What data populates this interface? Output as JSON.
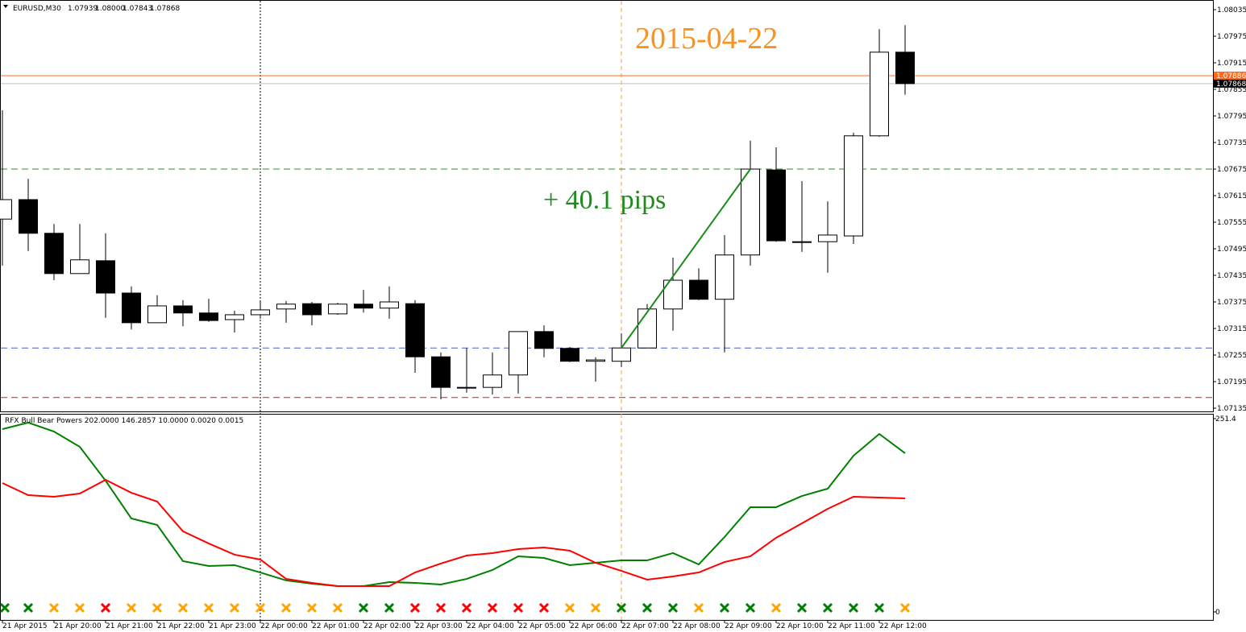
{
  "chart_data": [
    {
      "type": "candlestick",
      "symbol": "EURUSD,M30",
      "ohlc_labels": [
        "1.07939",
        "1.08000",
        "1.07843",
        "1.07868"
      ],
      "categories": [
        "21 Apr 2015",
        null,
        "21 Apr 20:00",
        null,
        "21 Apr 21:00",
        null,
        "21 Apr 22:00",
        null,
        "21 Apr 23:00",
        null,
        "22 Apr 00:00",
        null,
        "22 Apr 01:00",
        null,
        "22 Apr 02:00",
        null,
        "22 Apr 03:00",
        null,
        "22 Apr 04:00",
        null,
        "22 Apr 05:00",
        null,
        "22 Apr 06:00",
        null,
        "22 Apr 07:00",
        null,
        "22 Apr 08:00",
        null,
        "22 Apr 09:00",
        null,
        "22 Apr 10:00",
        null,
        "22 Apr 11:00",
        null,
        "22 Apr 12:00",
        null
      ],
      "open": [
        1.07562,
        1.07606,
        1.0753,
        1.07439,
        1.07468,
        1.07395,
        1.07328,
        1.07366,
        1.0735,
        1.07335,
        1.07346,
        1.07359,
        1.07371,
        1.07348,
        1.0737,
        1.07361,
        1.07371,
        1.07251,
        1.07182,
        1.07182,
        1.0721,
        1.07308,
        1.0727,
        1.07241,
        1.07241,
        1.07271,
        1.07359,
        1.07424,
        1.07381,
        1.07481,
        1.07673,
        1.0751,
        1.07511,
        1.07524,
        1.0775,
        1.07939
      ],
      "high": [
        1.07808,
        1.07653,
        1.07551,
        1.07551,
        1.0753,
        1.0741,
        1.0739,
        1.07379,
        1.07382,
        1.07355,
        1.07375,
        1.07377,
        1.07375,
        1.07373,
        1.07402,
        1.0741,
        1.07379,
        1.07261,
        1.07271,
        1.07261,
        1.07308,
        1.07322,
        1.07273,
        1.0725,
        1.07304,
        1.0737,
        1.07475,
        1.07451,
        1.07526,
        1.07739,
        1.07724,
        1.07648,
        1.07602,
        1.07757,
        1.07991,
        1.08
      ],
      "low": [
        1.07457,
        1.0749,
        1.07424,
        1.07439,
        1.07339,
        1.07313,
        1.07328,
        1.0732,
        1.0733,
        1.07306,
        1.07337,
        1.07328,
        1.07322,
        1.07346,
        1.07351,
        1.07337,
        1.07215,
        1.07155,
        1.0717,
        1.07166,
        1.07168,
        1.0725,
        1.07239,
        1.07195,
        1.07228,
        1.07271,
        1.0731,
        1.07379,
        1.07261,
        1.07457,
        1.07511,
        1.07488,
        1.07441,
        1.07506,
        1.07748,
        1.07843
      ],
      "close": [
        1.07606,
        1.0753,
        1.07439,
        1.0747,
        1.07395,
        1.07328,
        1.07366,
        1.0735,
        1.07333,
        1.07346,
        1.07357,
        1.0737,
        1.07346,
        1.0737,
        1.07361,
        1.07375,
        1.07251,
        1.07182,
        1.07181,
        1.0721,
        1.07308,
        1.0727,
        1.07241,
        1.07244,
        1.07271,
        1.07359,
        1.07424,
        1.07381,
        1.07481,
        1.07675,
        1.07513,
        1.07511,
        1.07526,
        1.0775,
        1.07939,
        1.07868
      ],
      "bull_color": "#ffffff",
      "bear_color": "#000000",
      "ylim": [
        1.07135,
        1.08035
      ],
      "yticks": [
        1.07135,
        1.07195,
        1.07255,
        1.07315,
        1.07375,
        1.07435,
        1.07495,
        1.07555,
        1.07615,
        1.07675,
        1.07735,
        1.07795,
        1.07855,
        1.07915,
        1.07975,
        1.08035
      ],
      "price_tags": [
        {
          "value": 1.07886,
          "color": "#ff6a1a"
        },
        {
          "value": 1.07868,
          "color": "#000000"
        }
      ],
      "levels": [
        {
          "value": 1.07675,
          "color": "#2e8b2e"
        },
        {
          "value": 1.07271,
          "color": "#4a5fcf"
        },
        {
          "value": 1.07159,
          "color": "#cc2222"
        }
      ],
      "trendline": [
        1.07271,
        1.07675
      ],
      "annotations": [
        "2015-04-22",
        "+ 40.1 pips"
      ]
    },
    {
      "type": "line",
      "title": "RFX Bull Bear Powers 202.0000 146.2857 10.0000 0.0020 0.0015",
      "ylim": [
        0,
        251.4
      ],
      "yticks": [
        0,
        251.4
      ],
      "series": [
        {
          "color": "#008000",
          "values": [
            237.8,
            246.2,
            234.6,
            214.7,
            170.7,
            121.5,
            113.1,
            66.0,
            59.7,
            60.8,
            51.3,
            40.9,
            36.7,
            33.5,
            33.5,
            38.8,
            37.7,
            35.6,
            42.9,
            54.5,
            72.3,
            70.2,
            60.8,
            63.9,
            67.0,
            67.0,
            76.5,
            61.8,
            97.4,
            136.2,
            136.2,
            150.8,
            160.3,
            203.2,
            231.5,
            206.4
          ]
        },
        {
          "color": "#ff0000",
          "values": [
            167.6,
            151.9,
            149.8,
            154.0,
            171.8,
            155.0,
            143.5,
            104.8,
            89.0,
            74.4,
            68.1,
            42.9,
            37.7,
            33.5,
            33.5,
            33.5,
            51.3,
            62.9,
            73.3,
            76.5,
            81.7,
            83.8,
            79.6,
            63.9,
            53.4,
            41.9,
            46.1,
            51.3,
            64.9,
            72.3,
            96.4,
            115.2,
            134.1,
            149.8,
            148.7,
            147.7
          ]
        }
      ],
      "signals": [
        "#008000",
        "#008000",
        "#ffa500",
        "#ffa500",
        "#ff0000",
        "#ffa500",
        "#ffa500",
        "#ffa500",
        "#ffa500",
        "#ffa500",
        "#ffa500",
        "#ffa500",
        "#ffa500",
        "#ffa500",
        "#008000",
        "#008000",
        "#ff0000",
        "#ff0000",
        "#ff0000",
        "#ff0000",
        "#ff0000",
        "#ff0000",
        "#ffa500",
        "#ffa500",
        "#008000",
        "#008000",
        "#008000",
        "#ffa500",
        "#008000",
        "#008000",
        "#ffa500",
        "#008000",
        "#008000",
        "#008000",
        "#008000",
        "#ffa500"
      ]
    }
  ]
}
